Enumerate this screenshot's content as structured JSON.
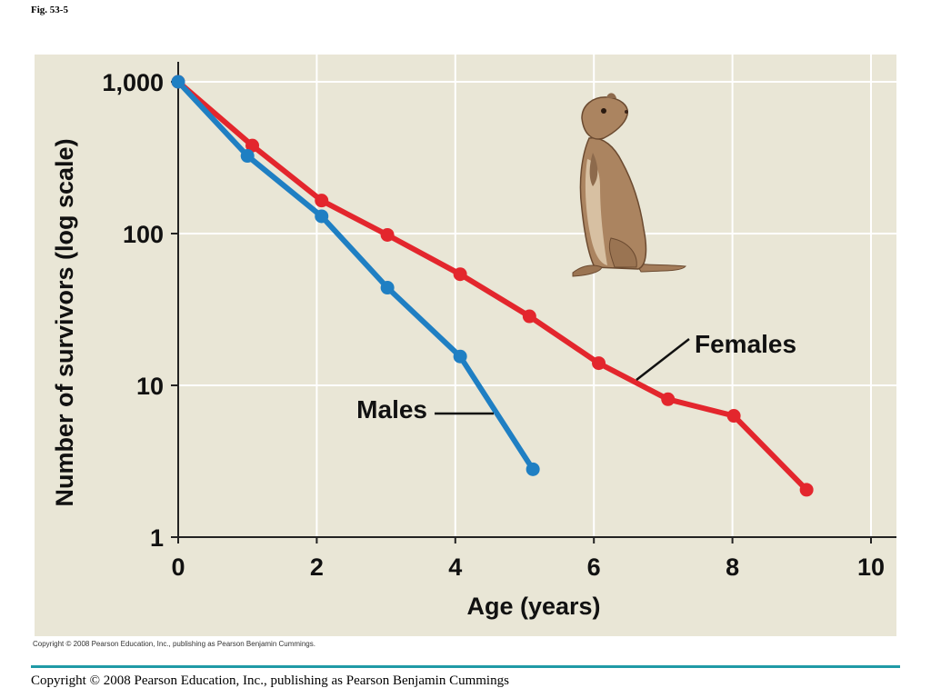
{
  "figure_label": "Fig. 53-5",
  "copyright_small": "Copyright © 2008 Pearson Education, Inc., publishing as Pearson Benjamin Cummings.",
  "copyright_footer": "Copyright © 2008 Pearson Education, Inc., publishing as Pearson Benjamin Cummings",
  "colors": {
    "plot_background": "#e9e6d6",
    "females": "#e3262d",
    "males": "#1f7fc3",
    "grid": "#ffffff",
    "rule": "#1f9aa6"
  },
  "illustration": "squirrel-icon",
  "chart_data": {
    "type": "line",
    "title": "",
    "xlabel": "Age (years)",
    "ylabel": "Number of survivors (log scale)",
    "xlim": [
      0,
      10.3
    ],
    "ylim": [
      1,
      1500
    ],
    "yscale": "log",
    "grid": true,
    "x_ticks": [
      0,
      2,
      4,
      6,
      8,
      10
    ],
    "x_tick_labels": [
      "0",
      "2",
      "4",
      "6",
      "8",
      "10"
    ],
    "y_ticks": [
      1,
      10,
      100,
      1000
    ],
    "y_tick_labels": [
      "1",
      "10",
      "100",
      "1,000"
    ],
    "series": [
      {
        "name": "Females",
        "color": "#e3262d",
        "x": [
          0,
          1.07,
          2.07,
          3.02,
          4.07,
          5.07,
          6.07,
          7.07,
          8.02,
          9.07
        ],
        "y": [
          1000,
          380,
          165,
          98,
          54,
          28.5,
          14,
          8.1,
          6.3,
          2.05
        ]
      },
      {
        "name": "Males",
        "color": "#1f7fc3",
        "x": [
          0,
          1.0,
          2.07,
          3.02,
          4.07,
          5.12
        ],
        "y": [
          1000,
          325,
          130,
          44,
          15.5,
          2.8
        ]
      }
    ],
    "annotations": [
      {
        "text": "Females",
        "series": "Females",
        "at_x": 6.65
      },
      {
        "text": "Males",
        "series": "Males",
        "at_x": 4.55
      }
    ]
  }
}
